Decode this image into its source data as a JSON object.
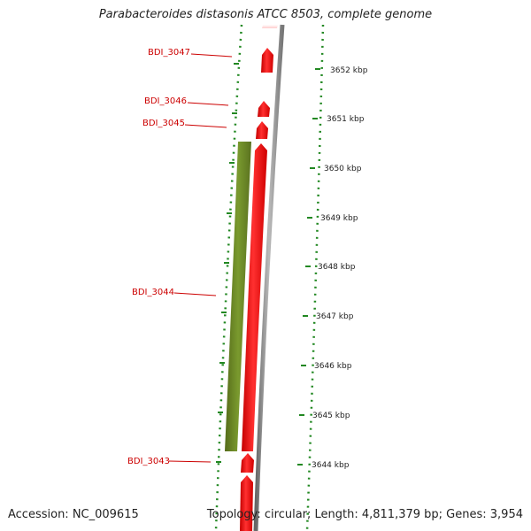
{
  "title": "Parabacteroides distasonis ATCC 8503, complete genome",
  "footer": {
    "accession": "Accession: NC_009615",
    "summary": "Topology: circular; Length: 4,811,379 bp; Genes: 3,954"
  },
  "colors": {
    "gene_forward": "#ee1111",
    "gene_reverse": "#6b8e23",
    "backbone": "#888888",
    "dotted_ring": "#228822",
    "label": "#cc0000"
  },
  "genes": [
    {
      "id": "BDI_3047",
      "label": "BDI_3047",
      "strand": "forward"
    },
    {
      "id": "BDI_3046",
      "label": "BDI_3046",
      "strand": "forward"
    },
    {
      "id": "BDI_3045",
      "label": "BDI_3045",
      "strand": "forward"
    },
    {
      "id": "BDI_3044",
      "label": "BDI_3044",
      "strand": "reverse"
    },
    {
      "id": "BDI_3043",
      "label": "BDI_3043",
      "strand": "forward"
    }
  ],
  "ticks": [
    "3652 kbp",
    "3651 kbp",
    "3650 kbp",
    "3649 kbp",
    "3648 kbp",
    "3647 kbp",
    "3646 kbp",
    "3645 kbp",
    "3644 kbp"
  ]
}
